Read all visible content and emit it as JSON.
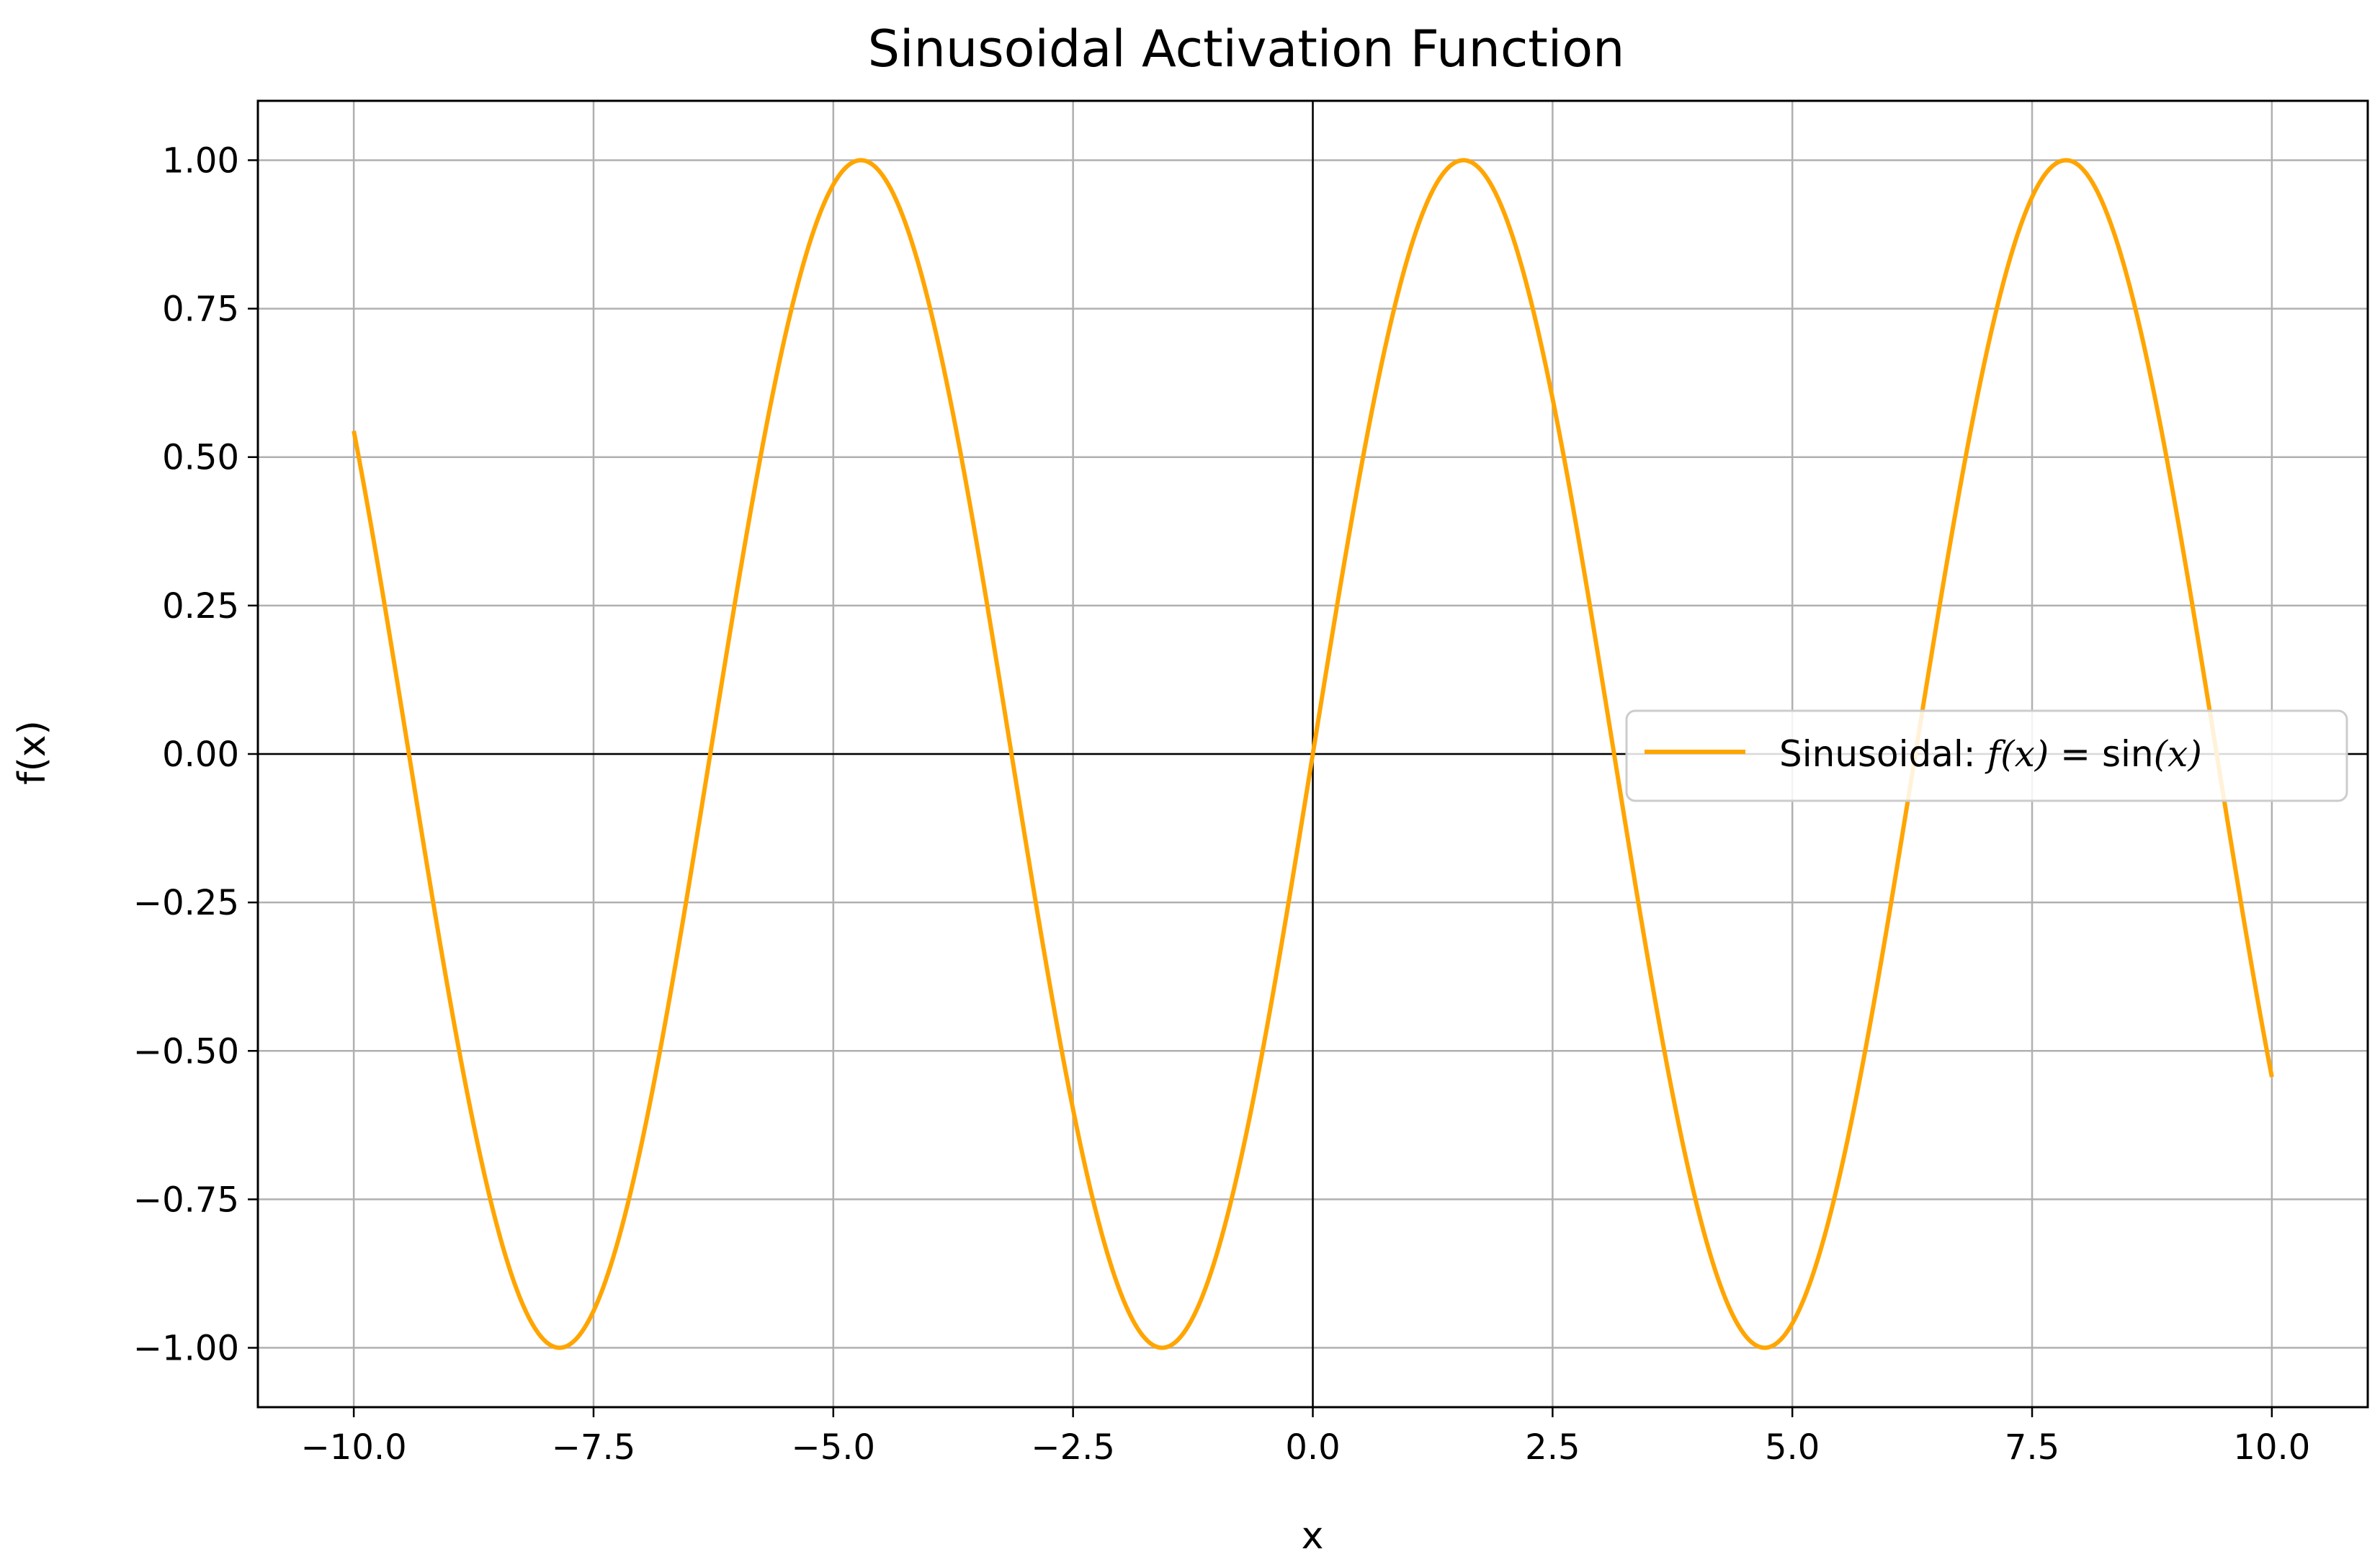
{
  "chart_data": {
    "type": "line",
    "title": "Sinusoidal Activation Function",
    "xlabel": "x",
    "ylabel": "f(x)",
    "xlim": [
      -11.0,
      11.0
    ],
    "ylim": [
      -1.1,
      1.1
    ],
    "xticks": [
      -10.0,
      -7.5,
      -5.0,
      -2.5,
      0.0,
      2.5,
      5.0,
      7.5,
      10.0
    ],
    "yticks": [
      1.0,
      0.75,
      0.5,
      0.25,
      0.0,
      -0.25,
      -0.5,
      -0.75,
      -1.0
    ],
    "xtick_labels": [
      "−10.0",
      "−7.5",
      "−5.0",
      "−2.5",
      "0.0",
      "2.5",
      "5.0",
      "7.5",
      "10.0"
    ],
    "ytick_labels": [
      "1.00",
      "0.75",
      "0.50",
      "0.25",
      "0.00",
      "−0.25",
      "−0.50",
      "−0.75",
      "−1.00"
    ],
    "grid": true,
    "zero_lines": true,
    "legend_position": "center-right",
    "series": [
      {
        "name": "Sinusoidal: f(x) = sin(x)",
        "legend_parts": {
          "prefix": "Sinusoidal: ",
          "lhs": "f(x)",
          "eq": " = ",
          "fn": "sin",
          "arg": "(x)"
        },
        "function": "sin",
        "x_range": [
          -10.0,
          10.0
        ],
        "color": "#FFA500",
        "x": [
          -10.0,
          -9.5,
          -9.0,
          -8.5,
          -8.0,
          -7.5,
          -7.0,
          -6.5,
          -6.0,
          -5.5,
          -5.0,
          -4.5,
          -4.0,
          -3.5,
          -3.0,
          -2.5,
          -2.0,
          -1.5,
          -1.0,
          -0.5,
          0.0,
          0.5,
          1.0,
          1.5,
          2.0,
          2.5,
          3.0,
          3.5,
          4.0,
          4.5,
          5.0,
          5.5,
          6.0,
          6.5,
          7.0,
          7.5,
          8.0,
          8.5,
          9.0,
          9.5,
          10.0
        ],
        "y": [
          0.544,
          0.075,
          -0.412,
          -0.798,
          -0.989,
          -0.938,
          -0.657,
          -0.215,
          0.279,
          0.706,
          0.959,
          0.978,
          0.757,
          0.351,
          -0.141,
          -0.598,
          -0.909,
          -0.997,
          -0.841,
          -0.479,
          0.0,
          0.479,
          0.841,
          0.997,
          0.909,
          0.598,
          0.141,
          -0.351,
          -0.757,
          -0.978,
          -0.959,
          -0.706,
          -0.279,
          0.215,
          0.657,
          0.938,
          0.989,
          0.798,
          0.412,
          -0.075,
          -0.544
        ]
      }
    ]
  }
}
